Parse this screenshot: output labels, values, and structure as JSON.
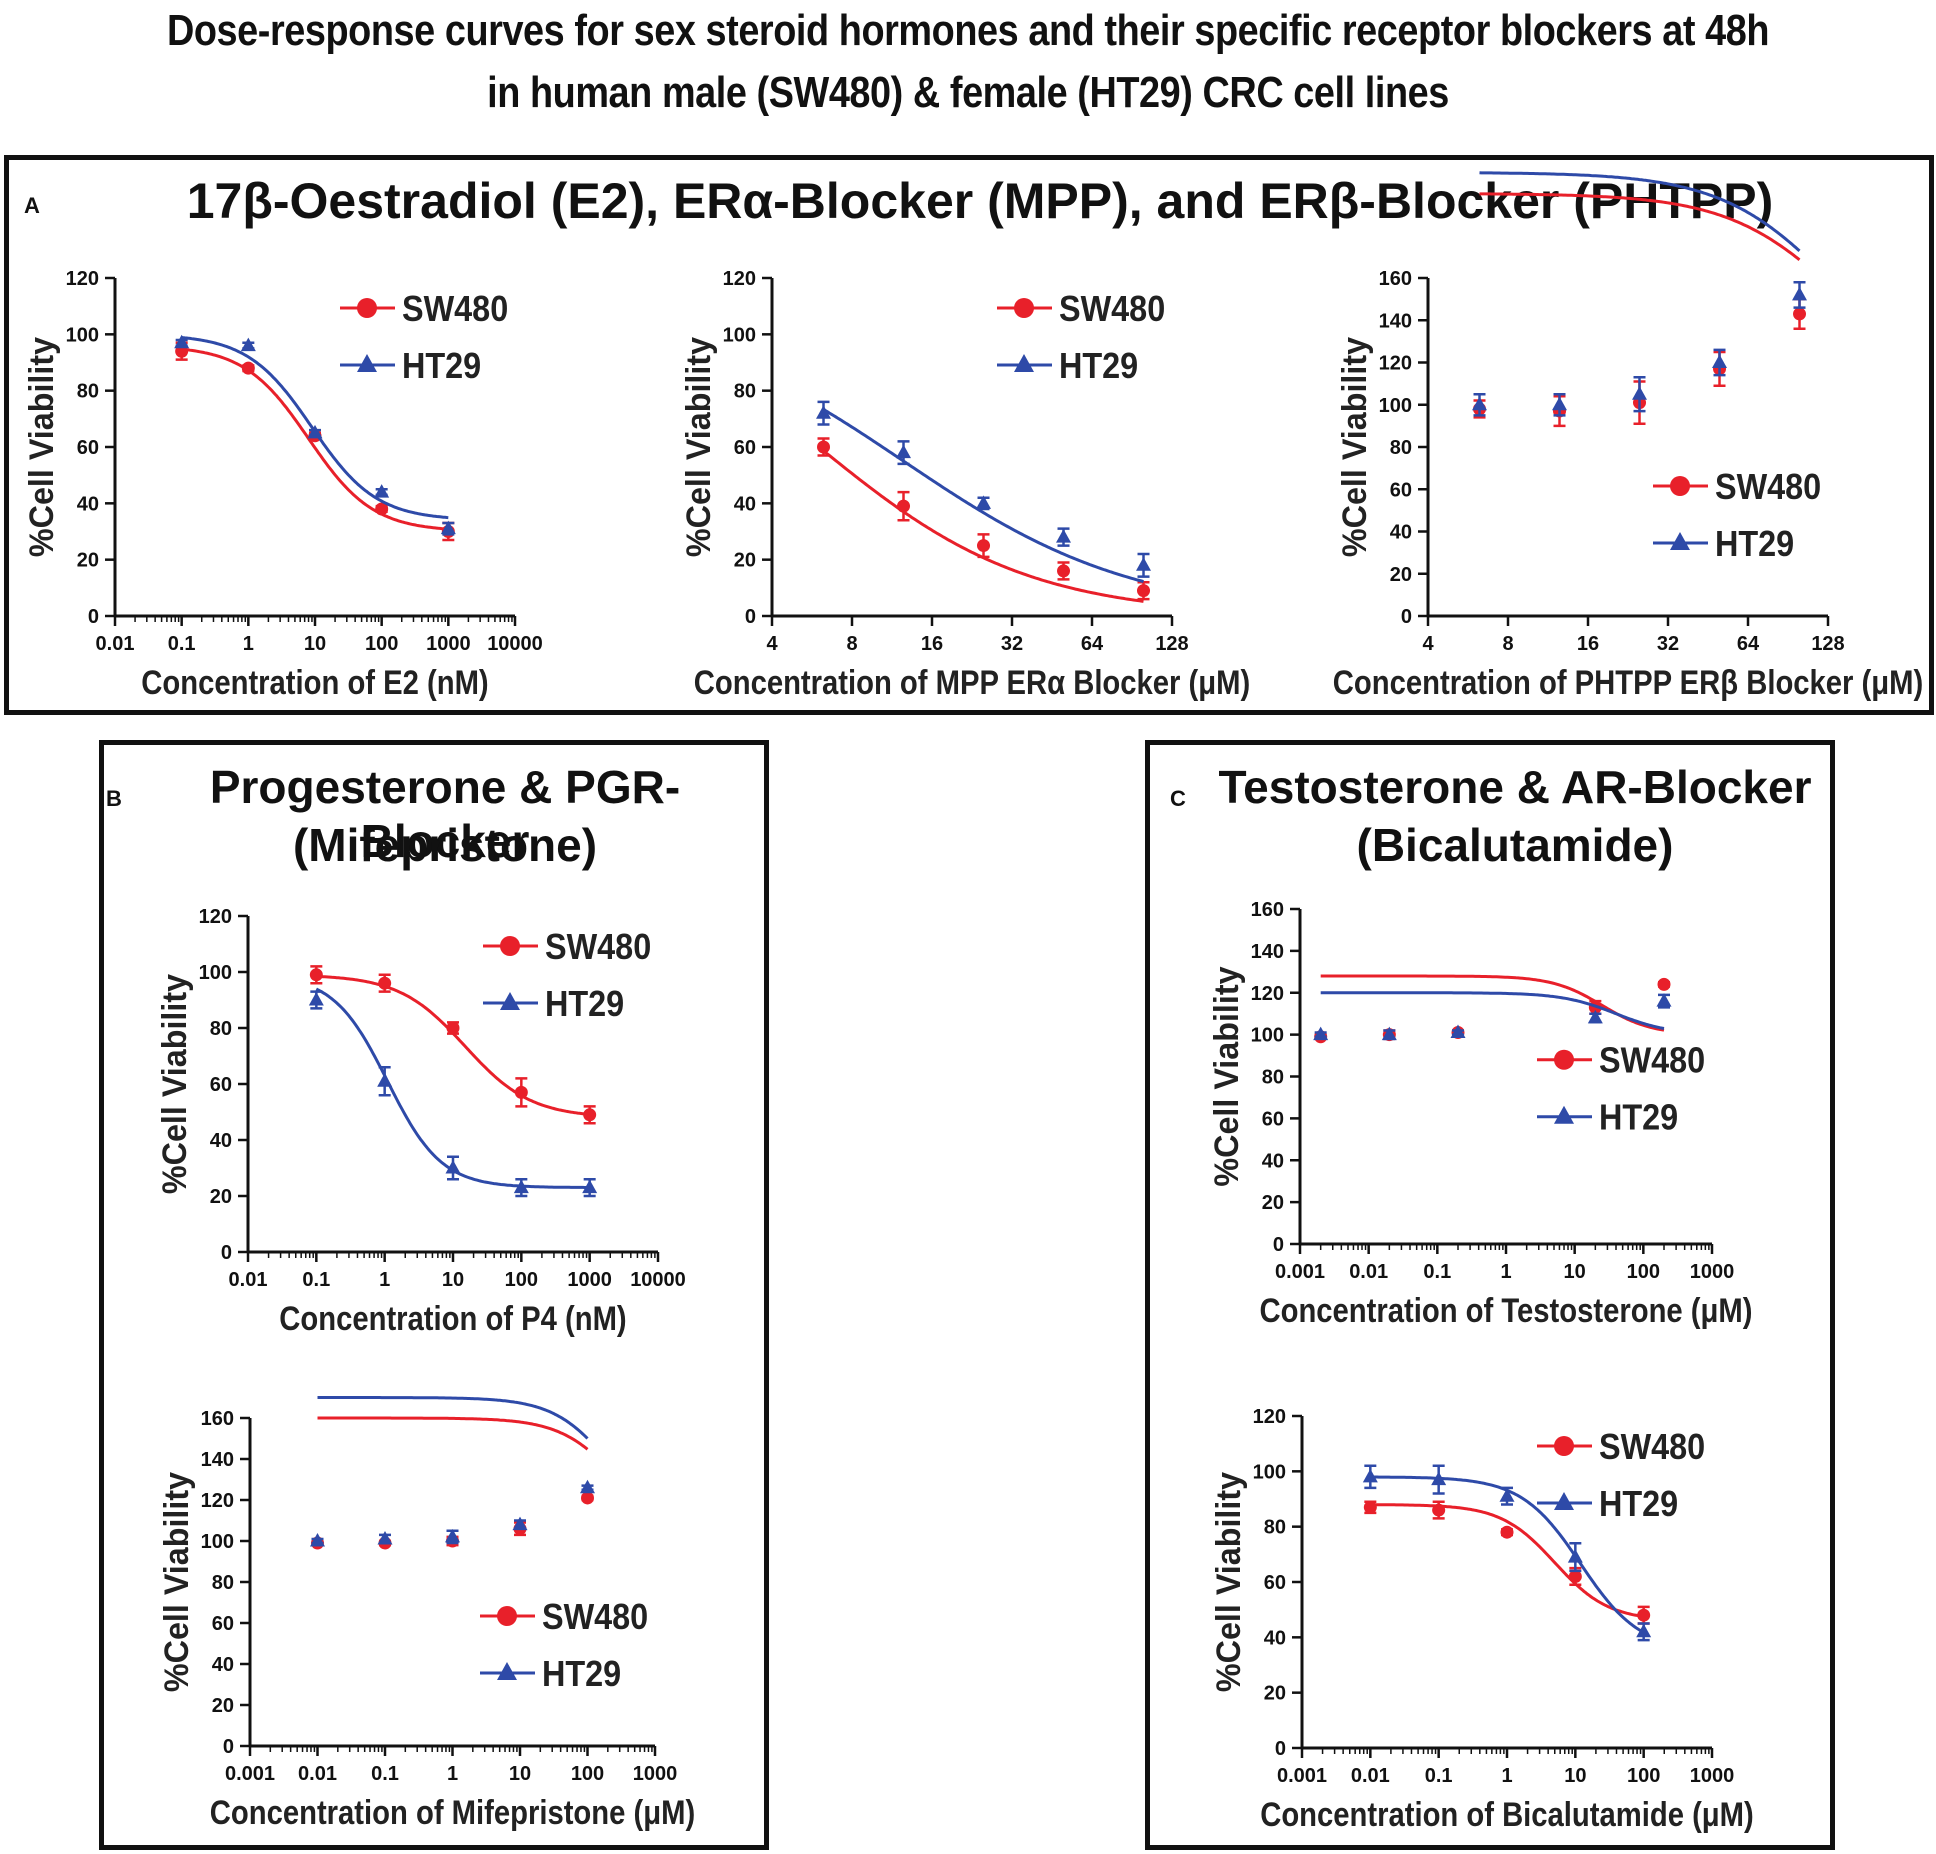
{
  "figure": {
    "title_line1": "Dose-response curves for sex steroid hormones and their specific receptor blockers at 48h",
    "title_line2": "in human male (SW480) & female (HT29) CRC cell lines"
  },
  "panels": {
    "A": {
      "letter": "A",
      "title": "17β-Oestradiol (E2), ERα-Blocker (MPP), and ERβ-Blocker (PHTPP)"
    },
    "B": {
      "letter": "B",
      "title_line1": "Progesterone & PGR-Blocker",
      "title_line2": "(Mifepristone)"
    },
    "C": {
      "letter": "C",
      "title_line1": "Testosterone & AR-Blocker",
      "title_line2": "(Bicalutamide)"
    }
  },
  "colors": {
    "SW480": "#e8202a",
    "HT29": "#2e4aa8"
  },
  "chart_data": [
    {
      "id": "A1",
      "type": "line",
      "xscale": "log10",
      "xlabel": "Concentration of E2 (nM)",
      "ylabel": "%Cell Viability",
      "xlim": [
        0.01,
        10000
      ],
      "ylim": [
        0,
        120
      ],
      "xticks": [
        0.01,
        0.1,
        1,
        10,
        100,
        1000,
        10000
      ],
      "xtick_labels": [
        "0.01",
        "0.1",
        "1",
        "10",
        "100",
        "1000",
        "10000"
      ],
      "yticks": [
        0,
        20,
        40,
        60,
        80,
        100,
        120
      ],
      "legend": "top-right",
      "series": [
        {
          "name": "SW480",
          "marker": "circle",
          "x": [
            0.1,
            1,
            10,
            100,
            1000
          ],
          "y": [
            94,
            88,
            64,
            38,
            30
          ],
          "err": [
            3,
            1,
            1,
            1,
            3
          ],
          "fit": {
            "bottom": 30,
            "top": 96,
            "ec50": 8,
            "hill": 0.9
          }
        },
        {
          "name": "HT29",
          "marker": "triangle",
          "x": [
            0.1,
            1,
            10,
            100,
            1000
          ],
          "y": [
            97,
            96,
            65,
            44,
            31
          ],
          "err": [
            1,
            1,
            1,
            1,
            2
          ],
          "fit": {
            "bottom": 34,
            "top": 100,
            "ec50": 9,
            "hill": 0.9
          }
        }
      ]
    },
    {
      "id": "A2",
      "type": "line",
      "xscale": "log2",
      "xlabel": "Concentration of MPP ERα Blocker (μM)",
      "ylabel": "%Cell Viability",
      "xlim": [
        4,
        128
      ],
      "ylim": [
        0,
        120
      ],
      "xticks": [
        4,
        8,
        16,
        32,
        64,
        128
      ],
      "xtick_labels": [
        "4",
        "8",
        "16",
        "32",
        "64",
        "128"
      ],
      "yticks": [
        0,
        20,
        40,
        60,
        80,
        100,
        120
      ],
      "legend": "top-right",
      "series": [
        {
          "name": "SW480",
          "marker": "circle",
          "x": [
            6.25,
            12.5,
            25,
            50,
            100
          ],
          "y": [
            60,
            39,
            25,
            16,
            9
          ],
          "err": [
            3,
            5,
            4,
            3,
            3
          ],
          "fit": {
            "bottom": 0,
            "top": 120,
            "ec50": 6,
            "hill": 1.1
          }
        },
        {
          "name": "HT29",
          "marker": "triangle",
          "x": [
            6.25,
            12.5,
            25,
            50,
            100
          ],
          "y": [
            72,
            58,
            40,
            28,
            18
          ],
          "err": [
            4,
            4,
            2,
            3,
            4
          ],
          "fit": {
            "bottom": 0,
            "top": 110,
            "ec50": 12.5,
            "hill": 1.0
          }
        }
      ]
    },
    {
      "id": "A3",
      "type": "line",
      "xscale": "log2",
      "xlabel": "Concentration of PHTPP ERβ Blocker (μM)",
      "ylabel": "%Cell Viability",
      "xlim": [
        4,
        128
      ],
      "ylim": [
        0,
        160
      ],
      "xticks": [
        4,
        8,
        16,
        32,
        64,
        128
      ],
      "xtick_labels": [
        "4",
        "8",
        "16",
        "32",
        "64",
        "128"
      ],
      "yticks": [
        0,
        20,
        40,
        60,
        80,
        100,
        120,
        140,
        160
      ],
      "legend": "bottom-right",
      "series": [
        {
          "name": "SW480",
          "marker": "circle",
          "x": [
            6.25,
            12.5,
            25,
            50,
            100
          ],
          "y": [
            98,
            97,
            101,
            117,
            143
          ],
          "err": [
            4,
            7,
            10,
            8,
            7
          ],
          "fit": {
            "bottom": 98,
            "top": 200,
            "ec50": 150,
            "hill": 2
          }
        },
        {
          "name": "HT29",
          "marker": "triangle",
          "x": [
            6.25,
            12.5,
            25,
            50,
            100
          ],
          "y": [
            100,
            100,
            105,
            120,
            152
          ],
          "err": [
            5,
            5,
            8,
            6,
            6
          ],
          "fit": {
            "bottom": 100,
            "top": 210,
            "ec50": 140,
            "hill": 2
          }
        }
      ]
    },
    {
      "id": "B1",
      "type": "line",
      "xscale": "log10",
      "xlabel": "Concentration of P4 (nM)",
      "ylabel": "%Cell Viability",
      "xlim": [
        0.01,
        10000
      ],
      "ylim": [
        0,
        120
      ],
      "xticks": [
        0.01,
        0.1,
        1,
        10,
        100,
        1000,
        10000
      ],
      "xtick_labels": [
        "0.01",
        "0.1",
        "1",
        "10",
        "100",
        "1000",
        "10000"
      ],
      "yticks": [
        0,
        20,
        40,
        60,
        80,
        100,
        120
      ],
      "legend": "top-right",
      "series": [
        {
          "name": "SW480",
          "marker": "circle",
          "x": [
            0.1,
            1,
            10,
            100,
            1000
          ],
          "y": [
            99,
            96,
            80,
            57,
            49
          ],
          "err": [
            3,
            3,
            2,
            5,
            3
          ],
          "fit": {
            "bottom": 48,
            "top": 99,
            "ec50": 15,
            "hill": 0.9
          }
        },
        {
          "name": "HT29",
          "marker": "triangle",
          "x": [
            0.1,
            1,
            10,
            100,
            1000
          ],
          "y": [
            90,
            61,
            30,
            23,
            23
          ],
          "err": [
            3,
            5,
            4,
            3,
            3
          ],
          "fit": {
            "bottom": 23,
            "top": 99,
            "ec50": 1.1,
            "hill": 1.1
          }
        }
      ]
    },
    {
      "id": "B2",
      "type": "line",
      "xscale": "log10",
      "xlabel": "Concentration of Mifepristone (μM)",
      "ylabel": "%Cell Viability",
      "xlim": [
        0.001,
        1000
      ],
      "ylim": [
        0,
        160
      ],
      "xticks": [
        0.001,
        0.01,
        0.1,
        1,
        10,
        100,
        1000
      ],
      "xtick_labels": [
        "0.001",
        "0.01",
        "0.1",
        "1",
        "10",
        "100",
        "1000"
      ],
      "yticks": [
        0,
        20,
        40,
        60,
        80,
        100,
        120,
        140,
        160
      ],
      "legend": "bottom-right",
      "series": [
        {
          "name": "SW480",
          "marker": "circle",
          "x": [
            0.01,
            0.1,
            1,
            10,
            100
          ],
          "y": [
            99,
            99,
            100,
            106,
            121
          ],
          "err": [
            1,
            1,
            2,
            3,
            1
          ],
          "fit": {
            "bottom": 99,
            "top": 160,
            "ec50": 300,
            "hill": 1
          }
        },
        {
          "name": "HT29",
          "marker": "triangle",
          "x": [
            0.01,
            0.1,
            1,
            10,
            100
          ],
          "y": [
            100,
            101,
            102,
            108,
            126
          ],
          "err": [
            1,
            2,
            3,
            2,
            1
          ],
          "fit": {
            "bottom": 100,
            "top": 170,
            "ec50": 250,
            "hill": 1
          }
        }
      ]
    },
    {
      "id": "C1",
      "type": "line",
      "xscale": "log10",
      "xlabel": "Concentration of Testosterone (μM)",
      "ylabel": "%Cell Viability",
      "xlim": [
        0.001,
        1000
      ],
      "ylim": [
        0,
        160
      ],
      "xticks": [
        0.001,
        0.01,
        0.1,
        1,
        10,
        100,
        1000
      ],
      "xtick_labels": [
        "0.001",
        "0.01",
        "0.1",
        "1",
        "10",
        "100",
        "1000"
      ],
      "yticks": [
        0,
        20,
        40,
        60,
        80,
        100,
        120,
        140,
        160
      ],
      "legend": "middle-right",
      "series": [
        {
          "name": "SW480",
          "marker": "circle",
          "x": [
            0.002,
            0.02,
            0.2,
            20,
            200
          ],
          "y": [
            99,
            100,
            101,
            113,
            124
          ],
          "err": [
            1,
            2,
            1,
            3,
            1
          ],
          "fit": {
            "bottom": 100,
            "top": 128,
            "ec50": 25,
            "hill": 1.2
          }
        },
        {
          "name": "HT29",
          "marker": "triangle",
          "x": [
            0.002,
            0.02,
            0.2,
            20,
            200
          ],
          "y": [
            100,
            100,
            101,
            108,
            116
          ],
          "err": [
            1,
            2,
            1,
            2,
            3
          ],
          "fit": {
            "bottom": 100,
            "top": 120,
            "ec50": 40,
            "hill": 1.1
          }
        }
      ]
    },
    {
      "id": "C2",
      "type": "line",
      "xscale": "log10",
      "xlabel": "Concentration of Bicalutamide (μM)",
      "ylabel": "%Cell Viability",
      "xlim": [
        0.001,
        1000
      ],
      "ylim": [
        0,
        120
      ],
      "xticks": [
        0.001,
        0.01,
        0.1,
        1,
        10,
        100,
        1000
      ],
      "xtick_labels": [
        "0.001",
        "0.01",
        "0.1",
        "1",
        "10",
        "100",
        "1000"
      ],
      "yticks": [
        0,
        20,
        40,
        60,
        80,
        100,
        120
      ],
      "legend": "top-right",
      "series": [
        {
          "name": "SW480",
          "marker": "circle",
          "x": [
            0.01,
            0.1,
            1,
            10,
            100
          ],
          "y": [
            87,
            86,
            78,
            62,
            48
          ],
          "err": [
            2,
            3,
            1,
            3,
            3
          ],
          "fit": {
            "bottom": 46,
            "top": 88,
            "ec50": 5,
            "hill": 1.1
          }
        },
        {
          "name": "HT29",
          "marker": "triangle",
          "x": [
            0.01,
            0.1,
            1,
            10,
            100
          ],
          "y": [
            98,
            97,
            91,
            69,
            42
          ],
          "err": [
            4,
            5,
            3,
            5,
            3
          ],
          "fit": {
            "bottom": 35,
            "top": 98,
            "ec50": 12,
            "hill": 1.0
          }
        }
      ]
    }
  ]
}
